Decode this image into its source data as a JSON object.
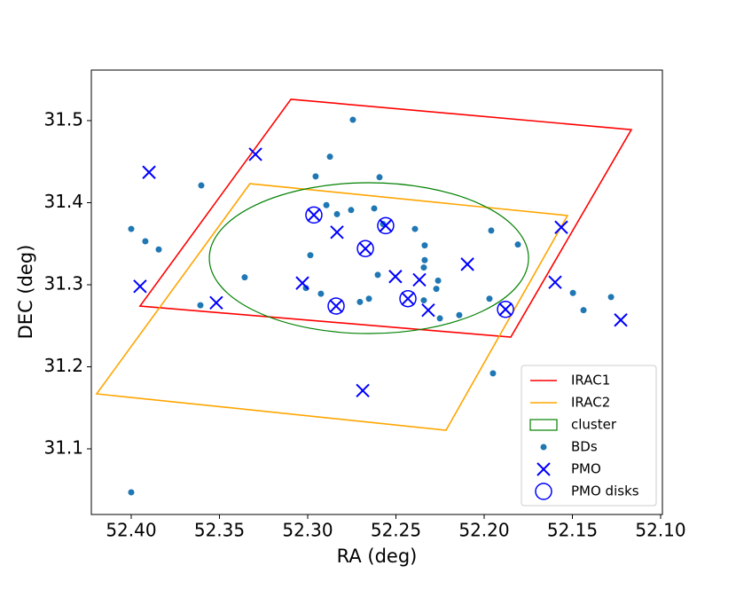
{
  "chart_data": {
    "type": "scatter",
    "xlabel": "RA (deg)",
    "ylabel": "DEC (deg)",
    "xlim": [
      52.4226,
      52.099
    ],
    "ylim": [
      31.02,
      31.5616
    ],
    "xticks": [
      {
        "value": 52.4,
        "label": "52.40"
      },
      {
        "value": 52.35,
        "label": "52.35"
      },
      {
        "value": 52.3,
        "label": "52.30"
      },
      {
        "value": 52.25,
        "label": "52.25"
      },
      {
        "value": 52.2,
        "label": "52.20"
      },
      {
        "value": 52.15,
        "label": "52.15"
      },
      {
        "value": 52.1,
        "label": "52.10"
      }
    ],
    "yticks": [
      31.1,
      31.2,
      31.3,
      31.4,
      31.5
    ],
    "grid": false,
    "legend": "lower right",
    "series": [
      {
        "name": "IRAC1",
        "color": "red",
        "shape": "polygon",
        "x": [
          52.3095,
          52.1166,
          52.1849,
          52.395
        ],
        "y": [
          31.526,
          31.489,
          31.2362,
          31.274
        ]
      },
      {
        "name": "IRAC2",
        "color": "orange",
        "shape": "polygon",
        "x": [
          52.3327,
          52.1528,
          52.2216,
          52.4196
        ],
        "y": [
          31.4232,
          31.3843,
          31.1227,
          31.167
        ]
      },
      {
        "name": "cluster",
        "color": "green",
        "shape": "ellipse",
        "x": [
          52.2653
        ],
        "y": [
          31.3324
        ],
        "width": 0.1809,
        "height": 0.1838
      },
      {
        "name": "BDs",
        "color": "#1f77b4",
        "shape": "dot",
        "x": [
          52.4,
          52.2744,
          52.2874,
          52.2593,
          52.2955,
          52.3603,
          52.2894,
          52.2834,
          52.2754,
          52.2623,
          52.2573,
          52.2392,
          52.2337,
          52.2337,
          52.196,
          52.1809,
          52.4,
          52.392,
          52.3844,
          52.2985,
          52.3357,
          52.2342,
          52.2261,
          52.2603,
          52.301,
          52.2925,
          52.2271,
          52.2653,
          52.2704,
          52.2342,
          52.3608,
          52.2251,
          52.2141,
          52.197,
          52.1497,
          52.1437,
          52.1281,
          52.195
        ],
        "y": [
          31.047,
          31.501,
          31.456,
          31.431,
          31.432,
          31.421,
          31.397,
          31.386,
          31.391,
          31.393,
          31.374,
          31.368,
          31.348,
          31.33,
          31.366,
          31.349,
          31.368,
          31.353,
          31.343,
          31.336,
          31.309,
          31.321,
          31.305,
          31.312,
          31.296,
          31.289,
          31.295,
          31.283,
          31.279,
          31.281,
          31.275,
          31.259,
          31.263,
          31.283,
          31.29,
          31.269,
          31.285,
          31.192
        ]
      },
      {
        "name": "PMO",
        "color": "blue",
        "shape": "x",
        "x": [
          52.3899,
          52.3296,
          52.2965,
          52.2834,
          52.2558,
          52.2673,
          52.2503,
          52.2367,
          52.2095,
          52.1563,
          52.395,
          52.3518,
          52.303,
          52.2839,
          52.2432,
          52.2317,
          52.1879,
          52.1598,
          52.1226,
          52.2688
        ],
        "y": [
          31.437,
          31.459,
          31.385,
          31.364,
          31.372,
          31.344,
          31.31,
          31.306,
          31.325,
          31.37,
          31.298,
          31.278,
          31.302,
          31.274,
          31.283,
          31.269,
          31.27,
          31.303,
          31.257,
          31.171
        ]
      },
      {
        "name": "PMO disks",
        "color": "blue",
        "shape": "circle",
        "x": [
          52.2965,
          52.2558,
          52.2673,
          52.2839,
          52.2432,
          52.1879
        ],
        "y": [
          31.385,
          31.372,
          31.344,
          31.274,
          31.283,
          31.27
        ]
      }
    ]
  }
}
